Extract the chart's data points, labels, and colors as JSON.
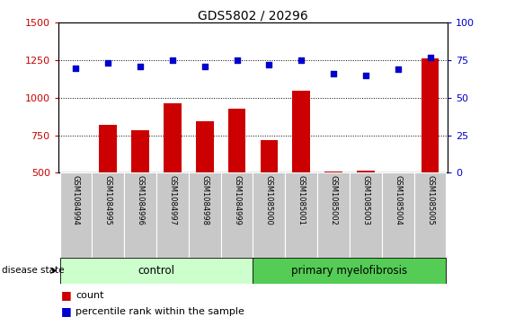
{
  "title": "GDS5802 / 20296",
  "samples": [
    "GSM1084994",
    "GSM1084995",
    "GSM1084996",
    "GSM1084997",
    "GSM1084998",
    "GSM1084999",
    "GSM1085000",
    "GSM1085001",
    "GSM1085002",
    "GSM1085003",
    "GSM1085004",
    "GSM1085005"
  ],
  "counts": [
    505,
    820,
    785,
    965,
    845,
    930,
    720,
    1045,
    510,
    515,
    505,
    1260
  ],
  "percentiles": [
    70,
    73,
    71,
    75,
    71,
    75,
    72,
    75,
    66,
    65,
    69,
    77
  ],
  "ylim_left": [
    500,
    1500
  ],
  "ylim_right": [
    0,
    100
  ],
  "yticks_left": [
    500,
    750,
    1000,
    1250,
    1500
  ],
  "yticks_right": [
    0,
    25,
    50,
    75,
    100
  ],
  "bar_color": "#cc0000",
  "dot_color": "#0000cc",
  "control_group": [
    0,
    1,
    2,
    3,
    4,
    5
  ],
  "disease_group": [
    6,
    7,
    8,
    9,
    10,
    11
  ],
  "control_label": "control",
  "disease_label": "primary myelofibrosis",
  "disease_state_label": "disease state",
  "legend_count_label": "count",
  "legend_percentile_label": "percentile rank within the sample",
  "control_color": "#ccffcc",
  "disease_color": "#55cc55",
  "xlabel_bg": "#c8c8c8"
}
